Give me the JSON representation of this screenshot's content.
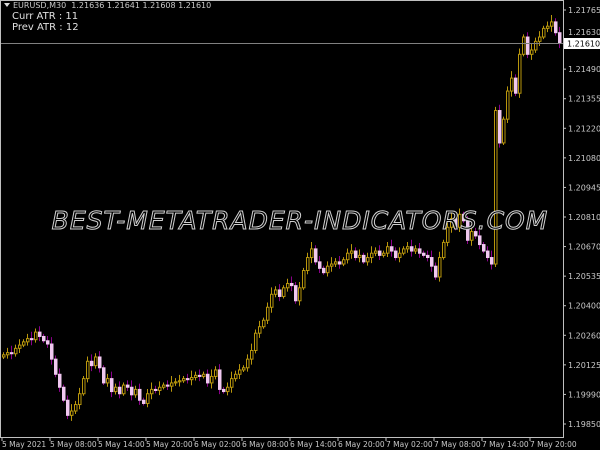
{
  "header": {
    "symbol": "EURUSD,M30",
    "ohlc": "1.21636 1.21641 1.21608 1.21610",
    "curr_atr": "Curr ATR : 11",
    "prev_atr": "Prev ATR : 12"
  },
  "watermark": "BEST-METATRADER-INDICATORS.COM",
  "current_price": "1.21610",
  "price_axis": [
    "1.21765",
    "1.21630",
    "1.21490",
    "1.21355",
    "1.21220",
    "1.21080",
    "1.20945",
    "1.20810",
    "1.20670",
    "1.20535",
    "1.20400",
    "1.20260",
    "1.20125",
    "1.19990",
    "1.19850"
  ],
  "time_axis": [
    "5 May 2021",
    "5 May 08:00",
    "5 May 14:00",
    "5 May 20:00",
    "6 May 02:00",
    "6 May 08:00",
    "6 May 14:00",
    "6 May 20:00",
    "7 May 02:00",
    "7 May 08:00",
    "7 May 14:00",
    "7 May 20:00"
  ],
  "colors": {
    "background": "#000000",
    "axis": "#c0c0c0",
    "bull": "#b8960c",
    "bear_body": "#f0c8f0",
    "bear_wick": "#8b008b",
    "price_line": "#808080"
  },
  "chart_data": {
    "type": "candlestick",
    "timeframe": "M30",
    "ylim": [
      1.1985,
      1.21765
    ],
    "first_open": 1.2016,
    "close": [
      1.2017,
      1.2018,
      1.20175,
      1.202,
      1.20215,
      1.2023,
      1.20245,
      1.2024,
      1.20275,
      1.20255,
      1.20235,
      1.2022,
      1.2015,
      1.2008,
      1.2002,
      1.1996,
      1.1989,
      1.1991,
      1.1994,
      1.1999,
      1.2006,
      1.2014,
      1.2012,
      1.2016,
      1.2011,
      1.2004,
      1.2006,
      1.2,
      1.2002,
      1.1999,
      1.2003,
      1.2002,
      1.19985,
      1.2001,
      1.1996,
      1.19945,
      1.1999,
      1.2001,
      1.20005,
      1.2002,
      1.2003,
      1.20025,
      1.2004,
      1.20045,
      1.2005,
      1.2006,
      1.20055,
      1.20065,
      1.20075,
      1.2007,
      1.2008,
      1.2004,
      1.2007,
      1.201,
      1.2001,
      1.2,
      1.2002,
      1.2006,
      1.2008,
      1.201,
      1.2011,
      1.2015,
      1.2019,
      1.2027,
      1.203,
      1.2033,
      1.2039,
      1.2045,
      1.2047,
      1.2044,
      1.2048,
      1.205,
      1.2049,
      1.2042,
      1.2048,
      1.2056,
      1.2062,
      1.2066,
      1.206,
      1.2057,
      1.2055,
      1.2058,
      1.2059,
      1.206,
      1.2059,
      1.2061,
      1.2064,
      1.2065,
      1.2062,
      1.2063,
      1.206,
      1.2062,
      1.2064,
      1.2065,
      1.2063,
      1.2064,
      1.2067,
      1.2065,
      1.2062,
      1.2064,
      1.2066,
      1.2067,
      1.2065,
      1.2066,
      1.2064,
      1.2063,
      1.2062,
      1.2058,
      1.2053,
      1.2062,
      1.2069,
      1.2076,
      1.208,
      1.2076,
      1.2082,
      1.2079,
      1.207,
      1.2074,
      1.2072,
      1.2068,
      1.2065,
      1.2062,
      1.2059,
      1.213,
      1.2115,
      1.2126,
      1.2139,
      1.2145,
      1.2138,
      1.2156,
      1.2164,
      1.2156,
      1.2158,
      1.2162,
      1.2164,
      1.2168,
      1.2169,
      1.2171,
      1.2166,
      1.2161
    ]
  }
}
